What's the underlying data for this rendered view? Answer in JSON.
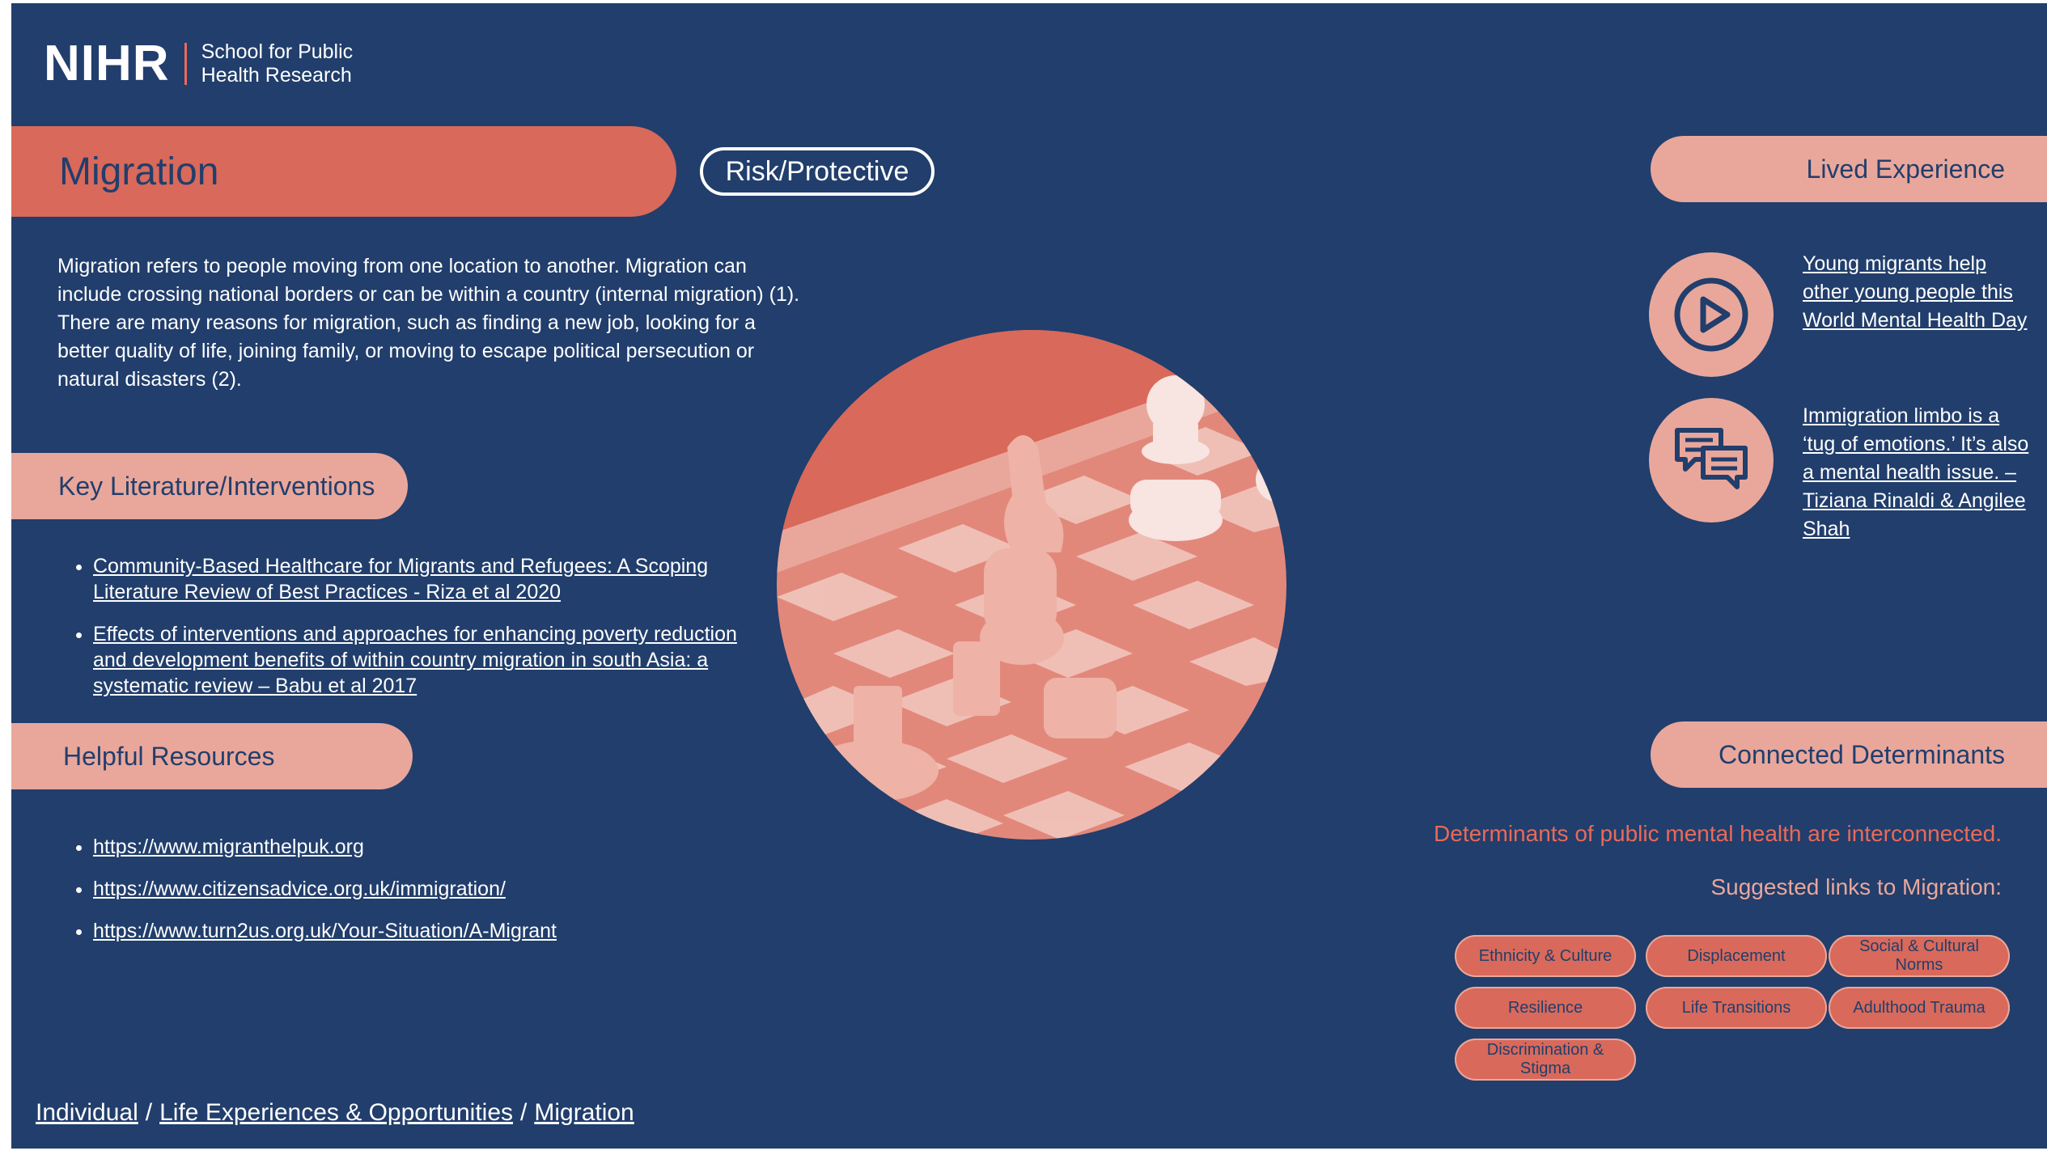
{
  "logo": {
    "mark": "NIHR",
    "line1": "School for Public",
    "line2": "Health Research"
  },
  "title": "Migration",
  "tag": "Risk/Protective",
  "intro": "Migration refers to people moving from one location to another. Migration can include crossing national borders or can be within a country (internal migration) (1). There are many reasons for migration, such as finding a new job, looking for a better quality of life, joining family, or moving to escape political persecution or natural disasters (2).",
  "key_literature": {
    "heading": "Key Literature/Interventions",
    "items": [
      "Community-Based Healthcare for Migrants and Refugees: A Scoping Literature Review of Best Practices - Riza et al 2020",
      "Effects of interventions and approaches for enhancing poverty reduction and development benefits of within country migration in south Asia: a systematic review – Babu et al 2017"
    ]
  },
  "resources": {
    "heading": "Helpful Resources",
    "items": [
      "https://www.migranthelpuk.org",
      "https://www.citizensadvice.org.uk/immigration/",
      "https://www.turn2us.org.uk/Your-Situation/A-Migrant"
    ]
  },
  "lived_experience": {
    "heading": "Lived Experience",
    "items": [
      {
        "icon": "play-icon",
        "label": "Young migrants help other young people this World Mental Health Day"
      },
      {
        "icon": "speech-bubbles-icon",
        "label": "Immigration limbo is a ‘tug of emotions.’ It’s also a mental health issue. – Tiziana Rinaldi & Angilee Shah"
      }
    ]
  },
  "connected": {
    "heading": "Connected Determinants",
    "intro": "Determinants of public mental health are interconnected.",
    "suggested": "Suggested links to Migration:",
    "chips": [
      "Ethnicity & Culture",
      "Displacement",
      "Social & Cultural Norms",
      "Resilience",
      "Life Transitions",
      "Adulthood Trauma",
      "Discrimination & Stigma"
    ]
  },
  "breadcrumb": {
    "items": [
      "Individual",
      "Life Experiences & Opportunities",
      "Migration"
    ],
    "separator": "/"
  },
  "colors": {
    "background": "#213e6c",
    "coral": "#d9695a",
    "light_coral": "#e9a79b",
    "accent_text": "#e96a59"
  }
}
